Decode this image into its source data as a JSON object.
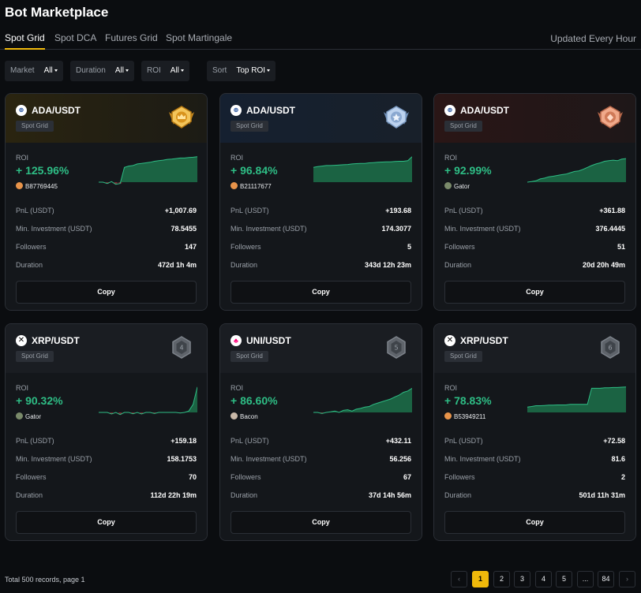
{
  "app": {
    "title": "Bot Marketplace",
    "updated": "Updated Every Hour"
  },
  "tabs": [
    {
      "label": "Spot Grid",
      "active": true
    },
    {
      "label": "Spot DCA",
      "active": false
    },
    {
      "label": "Futures Grid",
      "active": false
    },
    {
      "label": "Spot Martingale",
      "active": false
    }
  ],
  "filters": [
    {
      "label": "Market",
      "value": "All"
    },
    {
      "label": "Duration",
      "value": "All"
    },
    {
      "label": "ROI",
      "value": "All"
    },
    {
      "label": "Sort",
      "value": "Top ROI"
    }
  ],
  "row_labels": {
    "pnl": "PnL (USDT)",
    "min": "Min. Investment (USDT)",
    "followers": "Followers",
    "duration": "Duration"
  },
  "roi_label": "ROI",
  "copy_label": "Copy",
  "bots": [
    {
      "pair": "ADA/USDT",
      "coin": "ada-icon",
      "type": "Spot Grid",
      "rank": 1,
      "badge": "gold-medal-icon",
      "roi": "+ 125.96%",
      "trader": "B87769445",
      "pnl": "+1,007.69",
      "min": "78.5455",
      "followers": "147",
      "duration": "472d 1h 4m"
    },
    {
      "pair": "ADA/USDT",
      "coin": "ada-icon",
      "type": "Spot Grid",
      "rank": 2,
      "badge": "silver-medal-icon",
      "roi": "+ 96.84%",
      "trader": "B21117677",
      "pnl": "+193.68",
      "min": "174.3077",
      "followers": "5",
      "duration": "343d 12h 23m"
    },
    {
      "pair": "ADA/USDT",
      "coin": "ada-icon",
      "type": "Spot Grid",
      "rank": 3,
      "badge": "bronze-medal-icon",
      "roi": "+ 92.99%",
      "trader": "Gator",
      "pnl": "+361.88",
      "min": "376.4445",
      "followers": "51",
      "duration": "20d 20h 49m"
    },
    {
      "pair": "XRP/USDT",
      "coin": "xrp-icon",
      "type": "Spot Grid",
      "rank": "4",
      "badge": "rank-hexagon-icon",
      "roi": "+ 90.32%",
      "trader": "Gator",
      "pnl": "+159.18",
      "min": "158.1753",
      "followers": "70",
      "duration": "112d 22h 19m"
    },
    {
      "pair": "UNI/USDT",
      "coin": "uni-icon",
      "type": "Spot Grid",
      "rank": "5",
      "badge": "rank-hexagon-icon",
      "roi": "+ 86.60%",
      "trader": "Bacon",
      "pnl": "+432.11",
      "min": "56.256",
      "followers": "67",
      "duration": "37d 14h 56m"
    },
    {
      "pair": "XRP/USDT",
      "coin": "xrp-icon",
      "type": "Spot Grid",
      "rank": "6",
      "badge": "rank-hexagon-icon",
      "roi": "+ 78.83%",
      "trader": "B53949211",
      "pnl": "+72.58",
      "min": "81.6",
      "followers": "2",
      "duration": "501d 11h 31m"
    }
  ],
  "pagination": {
    "total": "Total 500 records, page 1",
    "pages": [
      "1",
      "2",
      "3",
      "4",
      "5",
      "...",
      "84"
    ],
    "current": "1"
  },
  "colors": {
    "accent": "#f0b90b",
    "positive": "#2ebd85",
    "negative": "#f6465d",
    "background": "#0b0d10",
    "card": "#14171b"
  }
}
